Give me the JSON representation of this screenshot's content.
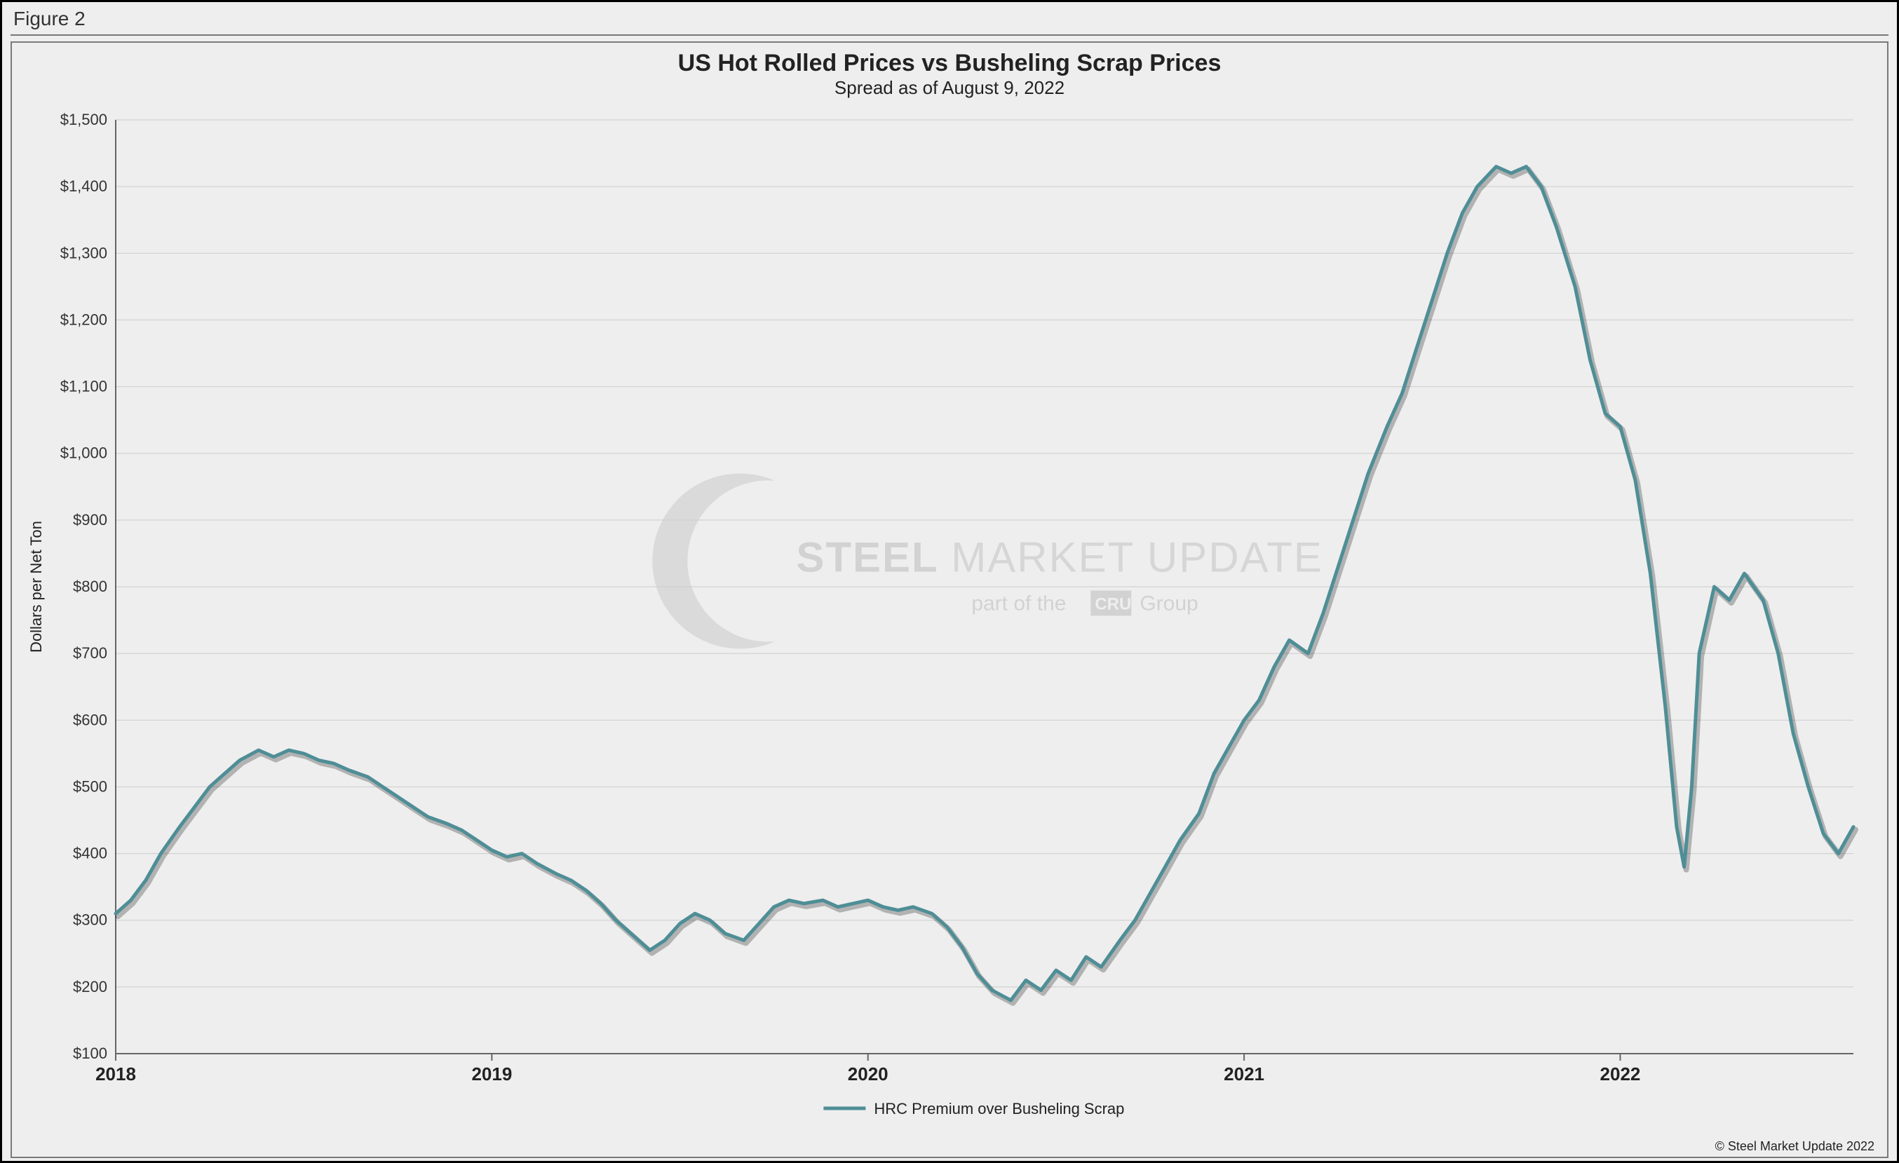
{
  "figure_label": "Figure 2",
  "title": "US Hot Rolled Prices vs Busheling Scrap Prices",
  "title_fontsize": 34,
  "subtitle": "Spread as of August 9, 2022",
  "subtitle_fontsize": 26,
  "ylabel": "Dollars per Net Ton",
  "ylabel_fontsize": 22,
  "legend_label": "HRC Premium over Busheling Scrap",
  "legend_fontsize": 22,
  "copyright": "© Steel Market Update 2022",
  "watermark": {
    "main": "STEEL MARKET UPDATE",
    "sub": "part of the",
    "group": "Group",
    "badge": "CRU"
  },
  "chart": {
    "type": "line",
    "background_color": "#eeeeee",
    "panel_border_color": "#7a7a7a",
    "grid_color": "#cccccc",
    "axis_color": "#666666",
    "tick_label_color": "#333333",
    "tick_label_fontsize": 22,
    "x_tick_label_fontsize": 26,
    "line_color": "#4f8e96",
    "line_width": 5,
    "shadow_color": "rgba(0,0,0,0.25)",
    "x": {
      "min": 2018.0,
      "max": 2022.62,
      "ticks": [
        2018,
        2019,
        2020,
        2021,
        2022
      ],
      "tick_labels": [
        "2018",
        "2019",
        "2020",
        "2021",
        "2022"
      ]
    },
    "y": {
      "min": 100,
      "max": 1500,
      "tick_step": 100,
      "tick_labels": [
        "$100",
        "$200",
        "$300",
        "$400",
        "$500",
        "$600",
        "$700",
        "$800",
        "$900",
        "$1,000",
        "$1,100",
        "$1,200",
        "$1,300",
        "$1,400",
        "$1,500"
      ]
    },
    "series": [
      {
        "name": "HRC Premium over Busheling Scrap",
        "points": [
          [
            2018.0,
            310
          ],
          [
            2018.04,
            330
          ],
          [
            2018.08,
            360
          ],
          [
            2018.12,
            400
          ],
          [
            2018.17,
            440
          ],
          [
            2018.21,
            470
          ],
          [
            2018.25,
            500
          ],
          [
            2018.29,
            520
          ],
          [
            2018.33,
            540
          ],
          [
            2018.38,
            555
          ],
          [
            2018.42,
            545
          ],
          [
            2018.46,
            555
          ],
          [
            2018.5,
            550
          ],
          [
            2018.54,
            540
          ],
          [
            2018.58,
            535
          ],
          [
            2018.62,
            525
          ],
          [
            2018.67,
            515
          ],
          [
            2018.71,
            500
          ],
          [
            2018.75,
            485
          ],
          [
            2018.79,
            470
          ],
          [
            2018.83,
            455
          ],
          [
            2018.88,
            445
          ],
          [
            2018.92,
            435
          ],
          [
            2018.96,
            420
          ],
          [
            2019.0,
            405
          ],
          [
            2019.04,
            395
          ],
          [
            2019.08,
            400
          ],
          [
            2019.12,
            385
          ],
          [
            2019.17,
            370
          ],
          [
            2019.21,
            360
          ],
          [
            2019.25,
            345
          ],
          [
            2019.29,
            325
          ],
          [
            2019.33,
            300
          ],
          [
            2019.38,
            275
          ],
          [
            2019.42,
            255
          ],
          [
            2019.46,
            270
          ],
          [
            2019.5,
            295
          ],
          [
            2019.54,
            310
          ],
          [
            2019.58,
            300
          ],
          [
            2019.62,
            280
          ],
          [
            2019.67,
            270
          ],
          [
            2019.71,
            295
          ],
          [
            2019.75,
            320
          ],
          [
            2019.79,
            330
          ],
          [
            2019.83,
            325
          ],
          [
            2019.88,
            330
          ],
          [
            2019.92,
            320
          ],
          [
            2019.96,
            325
          ],
          [
            2020.0,
            330
          ],
          [
            2020.04,
            320
          ],
          [
            2020.08,
            315
          ],
          [
            2020.12,
            320
          ],
          [
            2020.17,
            310
          ],
          [
            2020.21,
            290
          ],
          [
            2020.25,
            260
          ],
          [
            2020.29,
            220
          ],
          [
            2020.33,
            195
          ],
          [
            2020.38,
            180
          ],
          [
            2020.42,
            210
          ],
          [
            2020.46,
            195
          ],
          [
            2020.5,
            225
          ],
          [
            2020.54,
            210
          ],
          [
            2020.58,
            245
          ],
          [
            2020.62,
            230
          ],
          [
            2020.67,
            270
          ],
          [
            2020.71,
            300
          ],
          [
            2020.75,
            340
          ],
          [
            2020.79,
            380
          ],
          [
            2020.83,
            420
          ],
          [
            2020.88,
            460
          ],
          [
            2020.92,
            520
          ],
          [
            2020.96,
            560
          ],
          [
            2021.0,
            600
          ],
          [
            2021.04,
            630
          ],
          [
            2021.08,
            680
          ],
          [
            2021.12,
            720
          ],
          [
            2021.17,
            700
          ],
          [
            2021.21,
            760
          ],
          [
            2021.25,
            830
          ],
          [
            2021.29,
            900
          ],
          [
            2021.33,
            970
          ],
          [
            2021.38,
            1040
          ],
          [
            2021.42,
            1090
          ],
          [
            2021.46,
            1160
          ],
          [
            2021.5,
            1230
          ],
          [
            2021.54,
            1300
          ],
          [
            2021.58,
            1360
          ],
          [
            2021.62,
            1400
          ],
          [
            2021.67,
            1430
          ],
          [
            2021.71,
            1420
          ],
          [
            2021.75,
            1430
          ],
          [
            2021.79,
            1400
          ],
          [
            2021.83,
            1340
          ],
          [
            2021.88,
            1250
          ],
          [
            2021.92,
            1140
          ],
          [
            2021.96,
            1060
          ],
          [
            2022.0,
            1040
          ],
          [
            2022.04,
            960
          ],
          [
            2022.08,
            820
          ],
          [
            2022.12,
            620
          ],
          [
            2022.15,
            440
          ],
          [
            2022.17,
            380
          ],
          [
            2022.19,
            500
          ],
          [
            2022.21,
            700
          ],
          [
            2022.25,
            800
          ],
          [
            2022.29,
            780
          ],
          [
            2022.33,
            820
          ],
          [
            2022.38,
            780
          ],
          [
            2022.42,
            700
          ],
          [
            2022.46,
            580
          ],
          [
            2022.5,
            500
          ],
          [
            2022.54,
            430
          ],
          [
            2022.58,
            400
          ],
          [
            2022.62,
            440
          ]
        ]
      }
    ]
  }
}
